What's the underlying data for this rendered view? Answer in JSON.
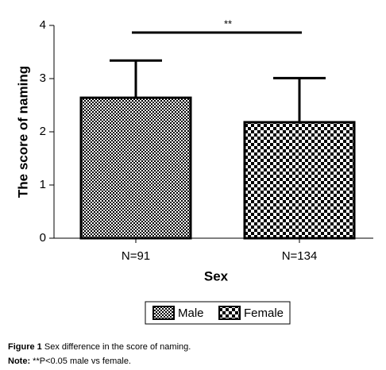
{
  "chart_data": {
    "type": "bar",
    "categories": [
      "N=91",
      "N=134"
    ],
    "series": [
      {
        "name": "Male",
        "color": "#000000",
        "values": [
          2.64,
          null
        ],
        "errors": [
          0.7,
          null
        ]
      },
      {
        "name": "Female",
        "color": "#000000",
        "values": [
          null,
          2.18
        ],
        "errors": [
          null,
          0.83
        ]
      }
    ],
    "ylim": [
      0,
      4
    ],
    "yticks": [
      0,
      1,
      2,
      3,
      4
    ],
    "xlabel": "Sex",
    "ylabel": "The score of naming",
    "annotation": "**",
    "legend": "bottom"
  },
  "caption": {
    "label": "Figure 1",
    "text": "Sex difference in the score of naming."
  },
  "note": {
    "label": "Note:",
    "text": "**P<0.05 male vs female."
  }
}
